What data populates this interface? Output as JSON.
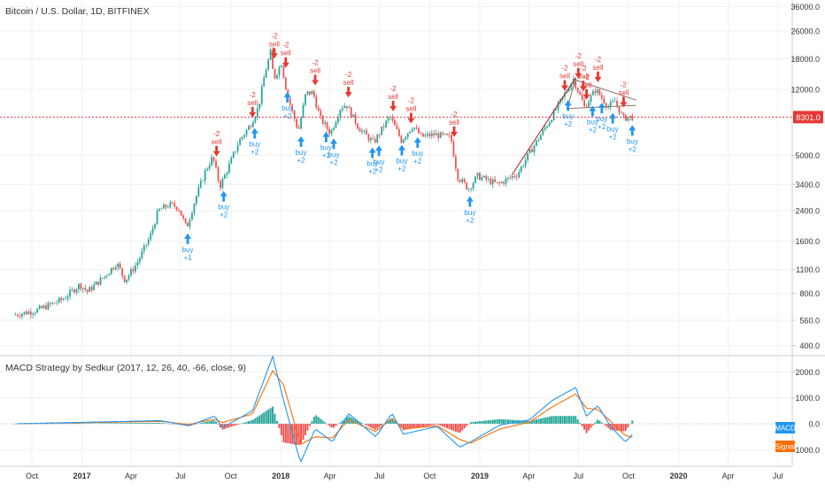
{
  "chart_title": "Bitcoin / U.S. Dollar, 1D, BITFINEX",
  "indicator_title": "MACD Strategy by Sedkur (2017, 12, 26, 40, -66, close, 9)",
  "colors": {
    "up": "#26a69a",
    "down": "#ef5350",
    "price_line": "#e53935",
    "buy": "#2196f3",
    "sell": "#e53935",
    "macd": "#2196f3",
    "signal": "#ff6d00",
    "grid": "#eef0f3",
    "axis_text": "#333333",
    "trendline": "#b71c1c",
    "triangle": "#8d6e63"
  },
  "chart_data": [
    {
      "type": "candlestick",
      "scale": "log",
      "x_ticks": [
        "Oct",
        "2017",
        "Apr",
        "Jul",
        "Oct",
        "2018",
        "Apr",
        "Jul",
        "Oct",
        "2019",
        "Apr",
        "Jul",
        "Oct",
        "2020",
        "Apr",
        "Jul"
      ],
      "y_ticks": [
        "36000.0",
        "26000.0",
        "18000.0",
        "12000.0",
        "5000.0",
        "3400.0",
        "2400.0",
        "1600.0",
        "1100.0",
        "800.0",
        "560.0",
        "400.0"
      ],
      "current_price": "8301.0",
      "price_path": [
        [
          "2016-09-01",
          600
        ],
        [
          "2016-10-15",
          640
        ],
        [
          "2016-12-01",
          740
        ],
        [
          "2017-01-01",
          900
        ],
        [
          "2017-01-15",
          820
        ],
        [
          "2017-02-15",
          1000
        ],
        [
          "2017-03-10",
          1200
        ],
        [
          "2017-03-25",
          950
        ],
        [
          "2017-04-15",
          1180
        ],
        [
          "2017-05-10",
          1700
        ],
        [
          "2017-05-25",
          2400
        ],
        [
          "2017-06-15",
          2600
        ],
        [
          "2017-07-01",
          2500
        ],
        [
          "2017-07-16",
          1900
        ],
        [
          "2017-08-01",
          2800
        ],
        [
          "2017-08-20",
          4100
        ],
        [
          "2017-09-02",
          4900
        ],
        [
          "2017-09-15",
          3300
        ],
        [
          "2017-10-01",
          4300
        ],
        [
          "2017-10-20",
          6000
        ],
        [
          "2017-11-10",
          7500
        ],
        [
          "2017-11-25",
          9500
        ],
        [
          "2017-12-07",
          15000
        ],
        [
          "2017-12-17",
          19500
        ],
        [
          "2017-12-23",
          13800
        ],
        [
          "2018-01-06",
          17000
        ],
        [
          "2018-01-17",
          11000
        ],
        [
          "2018-02-06",
          6900
        ],
        [
          "2018-02-20",
          11400
        ],
        [
          "2018-03-05",
          11500
        ],
        [
          "2018-03-18",
          8200
        ],
        [
          "2018-04-06",
          6700
        ],
        [
          "2018-04-25",
          9500
        ],
        [
          "2018-05-05",
          9800
        ],
        [
          "2018-05-28",
          7200
        ],
        [
          "2018-06-24",
          5900
        ],
        [
          "2018-07-24",
          8400
        ],
        [
          "2018-08-14",
          6100
        ],
        [
          "2018-09-04",
          7400
        ],
        [
          "2018-09-20",
          6400
        ],
        [
          "2018-10-15",
          6600
        ],
        [
          "2018-11-13",
          6300
        ],
        [
          "2018-11-25",
          3800
        ],
        [
          "2018-12-15",
          3200
        ],
        [
          "2019-01-01",
          3800
        ],
        [
          "2019-02-07",
          3400
        ],
        [
          "2019-03-15",
          3900
        ],
        [
          "2019-04-02",
          4900
        ],
        [
          "2019-05-14",
          8000
        ],
        [
          "2019-06-26",
          13800
        ],
        [
          "2019-07-16",
          9500
        ],
        [
          "2019-08-06",
          12000
        ],
        [
          "2019-08-29",
          9500
        ],
        [
          "2019-09-10",
          10300
        ],
        [
          "2019-09-25",
          8200
        ],
        [
          "2019-10-08",
          8301
        ]
      ],
      "signals": [
        {
          "kind": "buy",
          "date": "2017-07-14",
          "value": "+1"
        },
        {
          "kind": "sell",
          "date": "2017-09-05",
          "value": "-2"
        },
        {
          "kind": "buy",
          "date": "2017-09-18",
          "value": "+2"
        },
        {
          "kind": "sell",
          "date": "2017-11-10",
          "value": "-2"
        },
        {
          "kind": "buy",
          "date": "2017-11-14",
          "value": "+2"
        },
        {
          "kind": "sell",
          "date": "2017-12-20",
          "value": "-2"
        },
        {
          "kind": "sell",
          "date": "2018-01-10",
          "value": "-2"
        },
        {
          "kind": "buy",
          "date": "2018-01-13",
          "value": "+2"
        },
        {
          "kind": "buy",
          "date": "2018-02-07",
          "value": "+2"
        },
        {
          "kind": "sell",
          "date": "2018-03-05",
          "value": "-2"
        },
        {
          "kind": "buy",
          "date": "2018-03-25",
          "value": "+2"
        },
        {
          "kind": "buy",
          "date": "2018-04-08",
          "value": "+2"
        },
        {
          "kind": "sell",
          "date": "2018-05-05",
          "value": "-2"
        },
        {
          "kind": "buy",
          "date": "2018-06-18",
          "value": "+2"
        },
        {
          "kind": "buy",
          "date": "2018-06-30",
          "value": "+2"
        },
        {
          "kind": "sell",
          "date": "2018-07-26",
          "value": "-2"
        },
        {
          "kind": "buy",
          "date": "2018-08-11",
          "value": "+2"
        },
        {
          "kind": "sell",
          "date": "2018-08-28",
          "value": "-2"
        },
        {
          "kind": "buy",
          "date": "2018-09-09",
          "value": "+2"
        },
        {
          "kind": "sell",
          "date": "2018-11-15",
          "value": "-2"
        },
        {
          "kind": "buy",
          "date": "2018-12-14",
          "value": "+2"
        },
        {
          "kind": "sell",
          "date": "2019-06-06",
          "value": "-2"
        },
        {
          "kind": "buy",
          "date": "2019-06-12",
          "value": "+2"
        },
        {
          "kind": "sell",
          "date": "2019-07-01",
          "value": "-2"
        },
        {
          "kind": "sell",
          "date": "2019-07-10",
          "value": "-2"
        },
        {
          "kind": "sell",
          "date": "2019-07-16",
          "value": "-2"
        },
        {
          "kind": "buy",
          "date": "2019-07-27",
          "value": "+2"
        },
        {
          "kind": "sell",
          "date": "2019-08-06",
          "value": "-2"
        },
        {
          "kind": "buy",
          "date": "2019-08-13",
          "value": "+2"
        },
        {
          "kind": "buy",
          "date": "2019-09-02",
          "value": "+2"
        },
        {
          "kind": "sell",
          "date": "2019-09-22",
          "value": "-2"
        },
        {
          "kind": "buy",
          "date": "2019-10-08",
          "value": "+2"
        }
      ]
    },
    {
      "type": "macd",
      "y_ticks": [
        "2000.0",
        "1000.0",
        "0.0",
        "-1000.0"
      ],
      "legend": [
        "MACD",
        "Signal"
      ],
      "macd_path": [
        [
          "2016-09-01",
          0
        ],
        [
          "2017-05-25",
          120
        ],
        [
          "2017-07-16",
          -80
        ],
        [
          "2017-09-02",
          300
        ],
        [
          "2017-09-15",
          -150
        ],
        [
          "2017-11-10",
          500
        ],
        [
          "2017-12-17",
          2600
        ],
        [
          "2018-01-06",
          900
        ],
        [
          "2018-02-06",
          -1500
        ],
        [
          "2018-03-05",
          -200
        ],
        [
          "2018-04-06",
          -700
        ],
        [
          "2018-05-05",
          400
        ],
        [
          "2018-06-24",
          -500
        ],
        [
          "2018-07-24",
          400
        ],
        [
          "2018-08-14",
          -400
        ],
        [
          "2018-10-15",
          -100
        ],
        [
          "2018-11-25",
          -900
        ],
        [
          "2018-12-15",
          -700
        ],
        [
          "2019-02-07",
          -50
        ],
        [
          "2019-04-02",
          150
        ],
        [
          "2019-05-14",
          900
        ],
        [
          "2019-06-26",
          1400
        ],
        [
          "2019-07-16",
          300
        ],
        [
          "2019-08-06",
          700
        ],
        [
          "2019-08-29",
          -100
        ],
        [
          "2019-09-25",
          -700
        ],
        [
          "2019-10-08",
          -420
        ]
      ],
      "signal_path": [
        [
          "2016-09-01",
          0
        ],
        [
          "2017-05-25",
          90
        ],
        [
          "2017-07-16",
          -20
        ],
        [
          "2017-09-02",
          180
        ],
        [
          "2017-09-15",
          40
        ],
        [
          "2017-11-10",
          380
        ],
        [
          "2017-12-17",
          2050
        ],
        [
          "2018-01-06",
          1500
        ],
        [
          "2018-02-06",
          -800
        ],
        [
          "2018-03-05",
          -500
        ],
        [
          "2018-04-06",
          -550
        ],
        [
          "2018-05-05",
          150
        ],
        [
          "2018-06-24",
          -300
        ],
        [
          "2018-07-24",
          200
        ],
        [
          "2018-08-14",
          -200
        ],
        [
          "2018-10-15",
          -80
        ],
        [
          "2018-11-25",
          -600
        ],
        [
          "2018-12-15",
          -750
        ],
        [
          "2019-02-07",
          -200
        ],
        [
          "2019-04-02",
          60
        ],
        [
          "2019-05-14",
          650
        ],
        [
          "2019-06-26",
          1150
        ],
        [
          "2019-07-16",
          600
        ],
        [
          "2019-08-06",
          550
        ],
        [
          "2019-08-29",
          100
        ],
        [
          "2019-09-25",
          -450
        ],
        [
          "2019-10-08",
          -520
        ]
      ],
      "current_values": [
        "MACD",
        "Signal"
      ]
    }
  ]
}
